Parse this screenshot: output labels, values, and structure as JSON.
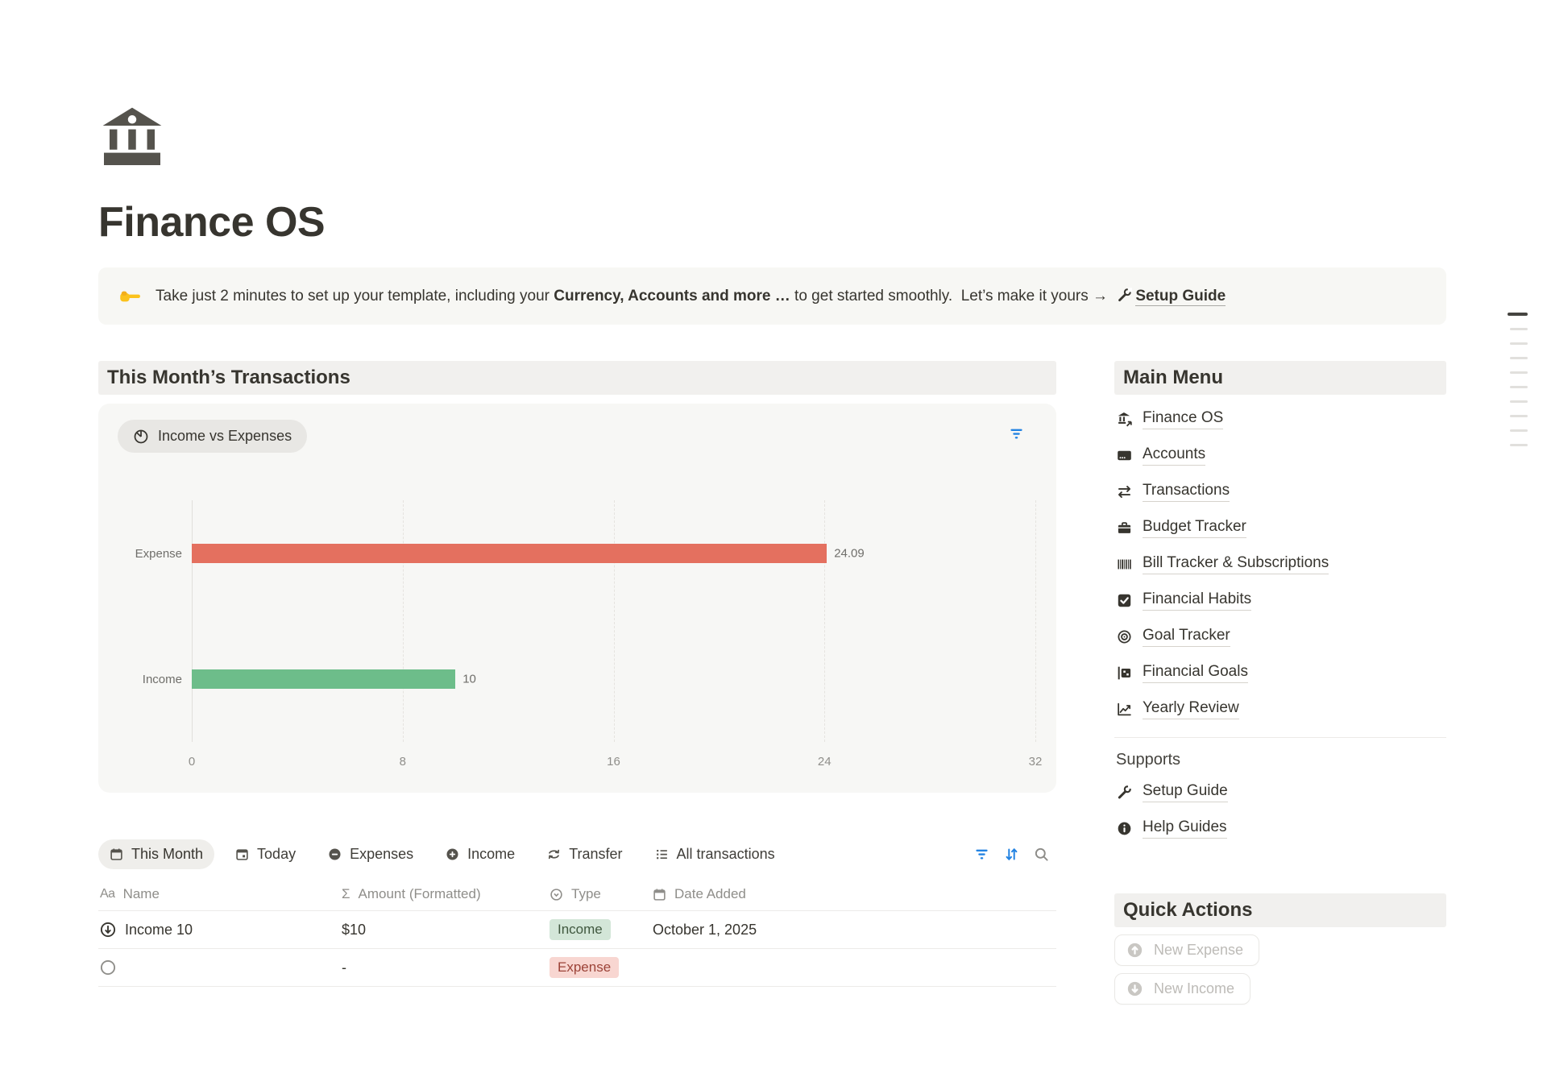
{
  "page": {
    "title": "Finance OS",
    "icon": "bank-icon"
  },
  "callout": {
    "text_before": "Take just 2 minutes to set up your template, including your ",
    "bold_text": "Currency, Accounts and more …",
    "text_after": " to get started smoothly.  Let’s make it yours → ",
    "link_label": "Setup Guide"
  },
  "main": {
    "section_heading": "This Month’s Transactions",
    "chart_pill_label": "Income vs Expenses",
    "tabs": [
      {
        "label": "This Month",
        "icon": "calendar-icon",
        "active": true
      },
      {
        "label": "Today",
        "icon": "calendar-today-icon",
        "active": false
      },
      {
        "label": "Expenses",
        "icon": "minus-circle-icon",
        "active": false
      },
      {
        "label": "Income",
        "icon": "plus-circle-icon",
        "active": false
      },
      {
        "label": "Transfer",
        "icon": "transfer-icon",
        "active": false
      },
      {
        "label": "All transactions",
        "icon": "list-icon",
        "active": false
      }
    ],
    "table": {
      "headers": [
        {
          "label": "Name",
          "icon": "text-icon"
        },
        {
          "label": "Amount (Formatted)",
          "icon": "sigma-icon"
        },
        {
          "label": "Type",
          "icon": "select-icon"
        },
        {
          "label": "Date Added",
          "icon": "calendar-icon"
        }
      ],
      "rows": [
        {
          "name": "Income 10",
          "amount": "$10",
          "type": "Income",
          "type_color": "green",
          "date": "October 1, 2025"
        },
        {
          "name": "",
          "amount": "-",
          "type": "Expense",
          "type_color": "red",
          "date": ""
        }
      ]
    }
  },
  "chart_data": {
    "type": "bar",
    "orientation": "horizontal",
    "title": "Income vs Expenses",
    "categories": [
      "Expense",
      "Income"
    ],
    "values": [
      24.09,
      10
    ],
    "data_labels": [
      "24.09",
      "10"
    ],
    "bar_colors": [
      "#e4705f",
      "#6dbd8a"
    ],
    "xlim": [
      0,
      32
    ],
    "xticks": [
      "0",
      "8",
      "16",
      "24",
      "32"
    ],
    "grid": "vertical-dashed",
    "legend": "none"
  },
  "sidebar": {
    "main_menu": {
      "heading": "Main Menu",
      "items": [
        {
          "label": "Finance OS",
          "icon": "bank-link-icon"
        },
        {
          "label": "Accounts",
          "icon": "credit-card-icon"
        },
        {
          "label": "Transactions",
          "icon": "swap-icon"
        },
        {
          "label": "Budget Tracker",
          "icon": "briefcase-icon"
        },
        {
          "label": "Bill Tracker & Subscriptions",
          "icon": "barcode-icon"
        },
        {
          "label": "Financial Habits",
          "icon": "checkbox-icon"
        },
        {
          "label": "Goal Tracker",
          "icon": "target-icon"
        },
        {
          "label": "Financial Goals",
          "icon": "milestone-icon"
        },
        {
          "label": "Yearly Review",
          "icon": "chart-line-icon"
        }
      ]
    },
    "supports": {
      "heading": "Supports",
      "items": [
        {
          "label": "Setup Guide",
          "icon": "wrench-icon"
        },
        {
          "label": "Help Guides",
          "icon": "info-icon"
        }
      ]
    },
    "quick_actions": {
      "heading": "Quick Actions",
      "buttons": [
        {
          "label": "New Expense",
          "icon": "circle-up-icon"
        },
        {
          "label": "New Income",
          "icon": "circle-down-icon"
        }
      ]
    }
  },
  "colors": {
    "accent_blue": "#2383e2",
    "bar_red": "#e4705f",
    "bar_green": "#6dbd8a",
    "badge_green_bg": "#d3e6d8",
    "badge_red_bg": "#f8d6d1",
    "band_gray": "#f1f0ee",
    "card_bg": "#f7f7f5",
    "text_primary": "#37352f",
    "text_secondary": "#73726e"
  }
}
